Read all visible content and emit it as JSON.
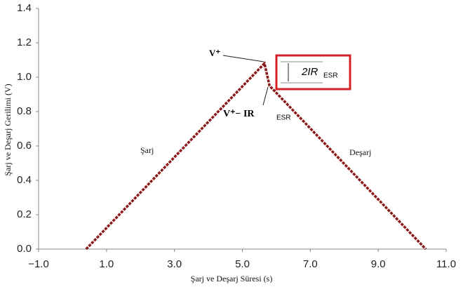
{
  "chart_data": {
    "type": "line",
    "x_label": "Şarj ve Deşarj Süresi (s)",
    "y_label": "Şarj ve Deşarj Gerilimi (V)",
    "x": [
      0.4,
      5.65,
      5.8,
      10.4
    ],
    "series": [
      {
        "name": "Şarj-Deşarj",
        "color": "#8b1a1a",
        "values": [
          0.0,
          1.08,
          0.95,
          0.0
        ]
      }
    ],
    "xlim": [
      -1.0,
      11.0
    ],
    "xticks": [
      {
        "value": -1,
        "label": "−1.0"
      },
      {
        "value": 1,
        "label": "1.0"
      },
      {
        "value": 3,
        "label": "3.0"
      },
      {
        "value": 5,
        "label": "5.0"
      },
      {
        "value": 7,
        "label": "7.0"
      },
      {
        "value": 9,
        "label": "9.0"
      },
      {
        "value": 11,
        "label": "11.0"
      }
    ],
    "ylim": [
      0.0,
      1.4
    ],
    "yticks": [
      {
        "value": 0,
        "label": "0.0"
      },
      {
        "value": 0.2,
        "label": "0.2"
      },
      {
        "value": 0.4,
        "label": "0.4"
      },
      {
        "value": 0.6,
        "label": "0.6"
      },
      {
        "value": 0.8,
        "label": "0.8"
      },
      {
        "value": 1,
        "label": "1.0"
      },
      {
        "value": 1.2,
        "label": "1.2"
      },
      {
        "value": 1.4,
        "label": "1.4"
      }
    ],
    "annotations": {
      "peak": "V⁺",
      "drop": "V⁺− IR",
      "drop_sub": "ESR",
      "gap": "2IR",
      "gap_sub": "ESR",
      "charge": "Şarj",
      "discharge": "Deşarj"
    },
    "grid": false
  }
}
